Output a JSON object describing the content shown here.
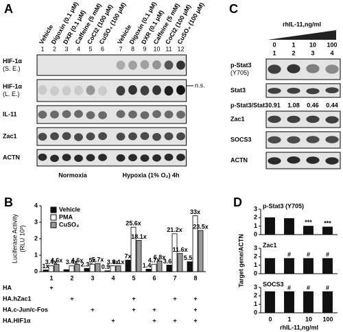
{
  "panel_labels": [
    "A",
    "B",
    "C",
    "D"
  ],
  "blot_a": {
    "lanes": [
      "Vehicle",
      "Digoxin (0.1 μM)",
      "DXR (0.1 μM)",
      "Caffeine (5 mM)",
      "CoCl2 (100 μM)",
      "CuSO₄ (100 μM)",
      "Vehicle",
      "Digoxin (0.1 μM)",
      "DXR (0.1 μM)",
      "Caffeine (5 mM)",
      "CoCl2 (100 μM)",
      "CuSO₄ (100 μM)"
    ],
    "lane_numbers": [
      "1",
      "2",
      "3",
      "4",
      "5",
      "6",
      "7",
      "8",
      "9",
      "10",
      "11",
      "12"
    ],
    "rows": [
      [
        "HIF-1α",
        "(S. E.)"
      ],
      [
        "HIF-1α",
        "(L. E.)"
      ],
      [
        "IL-11"
      ],
      [
        "Zac1"
      ],
      [
        "ACTN"
      ]
    ],
    "annotation": "n.s.",
    "conditions": [
      "Normoxia",
      "Hypoxia (1% O₂) 4h"
    ]
  },
  "blot_c": {
    "treatment": "rhIL-11,ng/ml",
    "doses": [
      "0",
      "1",
      "10",
      "100"
    ],
    "lane_numbers": [
      "1",
      "2",
      "3",
      "4"
    ],
    "rows": [
      [
        "p-Stat3",
        "(Y705)"
      ],
      [
        "Stat3"
      ],
      [
        "Zac1"
      ],
      [
        "SOCS3"
      ],
      [
        "ACTN"
      ]
    ],
    "ratio_label": "p-Stat3/Stat3",
    "ratios": [
      0.91,
      1.08,
      0.46,
      0.44
    ]
  },
  "constructs": {
    "rows": [
      {
        "name": "HA",
        "cells": [
          "+",
          null,
          null,
          null,
          null,
          null,
          null,
          null
        ]
      },
      {
        "name": "HA.hZac1",
        "cells": [
          null,
          "+",
          null,
          null,
          "+",
          null,
          "+",
          "+"
        ]
      },
      {
        "name": "HA.c-Jun/c-Fos",
        "cells": [
          null,
          null,
          "+",
          null,
          "+",
          "+",
          null,
          "+"
        ]
      },
      {
        "name": "HA.HIF1α",
        "cells": [
          null,
          null,
          null,
          "+",
          null,
          "+",
          "+",
          "+"
        ]
      }
    ]
  },
  "panel_d": {
    "ylabel": "Target gene/ACTN",
    "xlabel": "rhIL-11,ng/ml"
  },
  "chart_data": [
    {
      "type": "bar",
      "ylabel": [
        "Luciferase Activity",
        "(RLU 10³)"
      ],
      "categories": [
        "1",
        "2",
        "3",
        "4",
        "5",
        "6",
        "7",
        "8"
      ],
      "ylim": [
        0,
        4
      ],
      "yticks": [
        0,
        1,
        2,
        3,
        4
      ],
      "legend": "top-left",
      "series": [
        {
          "name": "Vehicle",
          "color": "#111111",
          "values": [
            0.1,
            0.12,
            0.2,
            0.05,
            0.7,
            0.15,
            0.4,
            0.6
          ],
          "labels": [
            "1x",
            null,
            "2.3x",
            "0.9x",
            "7x",
            "1.4x",
            "3.6x",
            "5.5x"
          ]
        },
        {
          "name": "PMA",
          "color": "#ffffff",
          "values": [
            0.35,
            0.35,
            0.45,
            0.35,
            2.7,
            0.45,
            2.3,
            3.4
          ],
          "labels": [
            "3.4x",
            "3.4x",
            "5x",
            "3.9x",
            "25.6x",
            "4.7x",
            "21.2x",
            "33x"
          ]
        },
        {
          "name": "CuSO₄",
          "color": "#999999",
          "values": [
            0.45,
            0.45,
            0.5,
            0.35,
            1.9,
            0.65,
            1.1,
            2.5
          ],
          "labels": [
            "4.6x",
            "4.6x",
            "5.7x",
            "4.1x",
            "18.1x",
            "6.8x",
            "11.6x",
            "23.5x"
          ]
        }
      ]
    },
    {
      "type": "bar",
      "title": "p-Stat3 (Y705)",
      "categories": [
        "0",
        "1",
        "10",
        "100"
      ],
      "ylim": [
        0,
        3
      ],
      "yticks": [
        0,
        1,
        2,
        3
      ],
      "series": [
        {
          "color": "#111111",
          "values": [
            2.0,
            1.9,
            1.0,
            0.9
          ],
          "labels": [
            null,
            null,
            "***",
            "***"
          ]
        }
      ]
    },
    {
      "type": "bar",
      "title": "Zac1",
      "categories": [
        "0",
        "1",
        "10",
        "100"
      ],
      "ylim": [
        0,
        3
      ],
      "yticks": [
        0,
        1,
        2,
        3
      ],
      "series": [
        {
          "color": "#111111",
          "values": [
            1.8,
            1.8,
            1.8,
            1.8
          ],
          "labels": [
            null,
            "#",
            "#",
            "#"
          ]
        }
      ]
    },
    {
      "type": "bar",
      "title": "SOCS3",
      "categories": [
        "0",
        "1",
        "10",
        "100"
      ],
      "ylim": [
        0,
        3
      ],
      "yticks": [
        0,
        1,
        2,
        3
      ],
      "series": [
        {
          "color": "#111111",
          "values": [
            2.5,
            2.5,
            2.5,
            2.5
          ],
          "labels": [
            null,
            "#",
            "#",
            "#"
          ]
        }
      ]
    }
  ]
}
